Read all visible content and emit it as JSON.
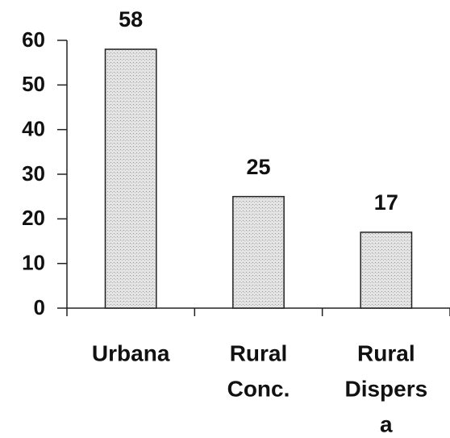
{
  "chart_data": {
    "type": "bar",
    "categories": [
      [
        "Urbana"
      ],
      [
        "Rural",
        "Conc."
      ],
      [
        "Rural",
        "Dispers",
        "a"
      ]
    ],
    "values": [
      58,
      25,
      17
    ],
    "color": "#d9d9d9",
    "ylim": [
      0,
      60
    ],
    "yticks": [
      0,
      10,
      20,
      30,
      40,
      50,
      60
    ]
  }
}
